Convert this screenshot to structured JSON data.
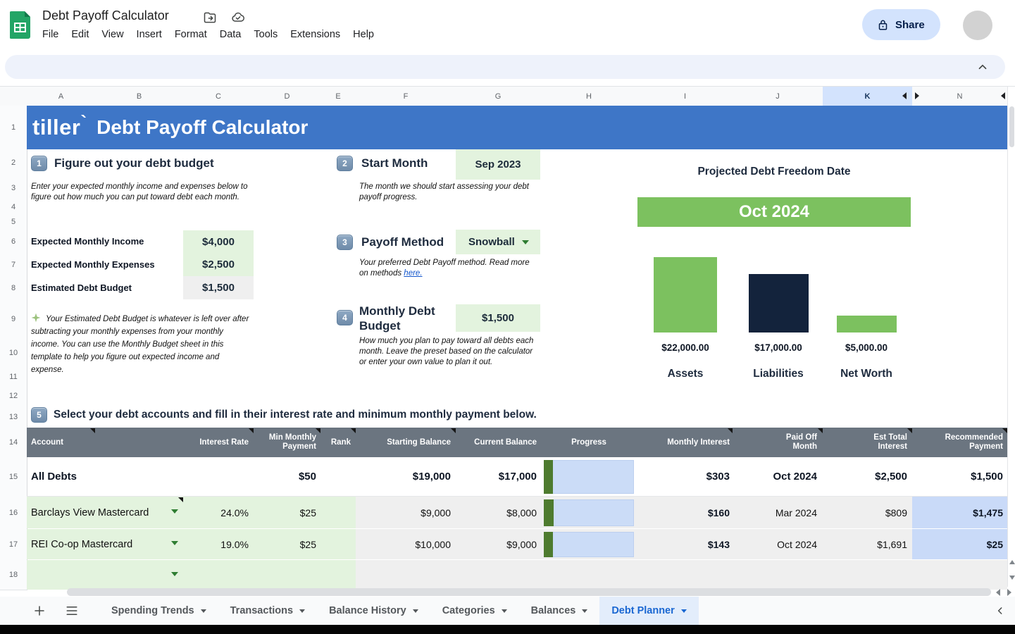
{
  "chrome": {
    "doc_title": "Debt Payoff Calculator",
    "menus": [
      "File",
      "Edit",
      "View",
      "Insert",
      "Format",
      "Data",
      "Tools",
      "Extensions",
      "Help"
    ],
    "share_label": "Share"
  },
  "grid": {
    "columns": [
      "A",
      "B",
      "C",
      "D",
      "E",
      "F",
      "G",
      "H",
      "I",
      "J",
      "K",
      "N"
    ],
    "rows": [
      "1",
      "2",
      "3",
      "4",
      "5",
      "6",
      "7",
      "8",
      "9",
      "10",
      "11",
      "12",
      "13",
      "14",
      "15",
      "16",
      "17",
      "18"
    ]
  },
  "banner": {
    "logo": "tiller",
    "logo_mark": "`",
    "title": "Debt Payoff Calculator"
  },
  "steps": {
    "s1": {
      "num": "1",
      "title": "Figure out your debt budget",
      "desc": "Enter your expected monthly income and expenses below to figure out how much you can put toward debt each month.",
      "fields": [
        {
          "label": "Expected Monthly Income",
          "value": "$4,000"
        },
        {
          "label": "Expected Monthly Expenses",
          "value": "$2,500"
        },
        {
          "label": "Estimated Debt Budget",
          "value": "$1,500"
        }
      ],
      "note": "Your Estimated Debt Budget is whatever is left over after subtracting your monthly expenses from your monthly income. You can use the Monthly Budget sheet in this template to help you figure out expected income and expense."
    },
    "s2": {
      "num": "2",
      "title": "Start Month",
      "value": "Sep 2023",
      "desc": "The month we should start assessing your debt payoff progress."
    },
    "s3": {
      "num": "3",
      "title": "Payoff Method",
      "value": "Snowball",
      "desc": "Your preferred Debt Payoff method. Read more on methods ",
      "link_text": "here."
    },
    "s4": {
      "num": "4",
      "title": "Monthly Debt Budget",
      "value": "$1,500",
      "desc": "How much you plan to pay toward all debts each month. Leave the preset based on the calculator or enter your own value to plan it out."
    },
    "s5": {
      "num": "5",
      "title": "Select your debt accounts and fill in their interest rate and minimum monthly payment below."
    }
  },
  "freedom": {
    "title": "Projected Debt Freedom Date",
    "date": "Oct 2024"
  },
  "chart_data": {
    "type": "bar",
    "title": "Projected Debt Freedom Date",
    "annotation": "Oct 2024",
    "categories": [
      "Assets",
      "Liabilities",
      "Net Worth"
    ],
    "values": [
      22000,
      17000,
      5000
    ],
    "value_labels": [
      "$22,000.00",
      "$17,000.00",
      "$5,000.00"
    ],
    "colors": [
      "#7CC15F",
      "#13233C",
      "#7CC15F"
    ],
    "ylim": [
      0,
      22000
    ],
    "grid": false,
    "legend": false
  },
  "table": {
    "headers": {
      "account": "Account",
      "interest": "Interest Rate",
      "min_payment": "Min Monthly\nPayment",
      "rank": "Rank",
      "starting": "Starting Balance",
      "current": "Current Balance",
      "progress": "Progress",
      "monthly_interest": "Monthly Interest",
      "paid_off": "Paid Off\nMonth",
      "est_interest": "Est Total\nInterest",
      "recommended": "Recommended\nPayment"
    },
    "rows": [
      {
        "account": "All Debts",
        "interest": "",
        "min_payment": "$50",
        "starting": "$19,000",
        "current": "$17,000",
        "progress_pct": 10.5,
        "monthly_interest": "$303",
        "paid_off": "Oct 2024",
        "est_interest": "$2,500",
        "recommended": "$1,500"
      },
      {
        "account": "Barclays View Mastercard",
        "interest": "24.0%",
        "min_payment": "$25",
        "starting": "$9,000",
        "current": "$8,000",
        "progress_pct": 11.1,
        "monthly_interest": "$160",
        "paid_off": "Mar 2024",
        "est_interest": "$809",
        "recommended": "$1,475"
      },
      {
        "account": "REI Co-op Mastercard",
        "interest": "19.0%",
        "min_payment": "$25",
        "starting": "$10,000",
        "current": "$9,000",
        "progress_pct": 10.0,
        "monthly_interest": "$143",
        "paid_off": "Oct 2024",
        "est_interest": "$1,691",
        "recommended": "$25"
      }
    ]
  },
  "tabs": {
    "items": [
      "Spending Trends",
      "Transactions",
      "Balance History",
      "Categories",
      "Balances",
      "Debt Planner"
    ],
    "active": "Debt Planner"
  }
}
